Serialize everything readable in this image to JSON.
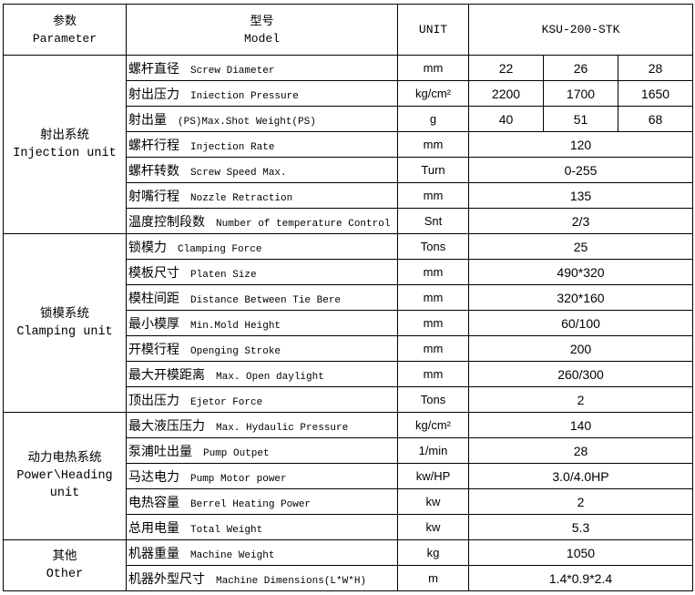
{
  "header": {
    "parameter_zh": "参数",
    "parameter_en": "Parameter",
    "model_zh": "型号",
    "model_en": "Model",
    "unit": "UNIT",
    "model_value": "KSU-200-STK"
  },
  "groups": [
    {
      "zh": "射出系统",
      "en": "Injection unit",
      "rows": [
        {
          "zh": "螺杆直径",
          "en": "Screw Diameter",
          "unit": "mm",
          "values": [
            "22",
            "26",
            "28"
          ]
        },
        {
          "zh": "射出压力",
          "en": "Iniection Pressure",
          "unit": "kg/cm²",
          "values": [
            "2200",
            "1700",
            "1650"
          ]
        },
        {
          "zh": "射出量",
          "en": "(PS)Max.Shot Weight(PS)",
          "unit": "g",
          "values": [
            "40",
            "51",
            "68"
          ]
        },
        {
          "zh": "螺杆行程",
          "en": "Injection  Rate",
          "unit": "mm",
          "values": [
            "120"
          ]
        },
        {
          "zh": "螺杆转数",
          "en": "Screw Speed Max.",
          "unit": "Turn",
          "values": [
            "0-255"
          ]
        },
        {
          "zh": "射嘴行程",
          "en": "Nozzle  Retraction",
          "unit": "mm",
          "values": [
            "135"
          ]
        },
        {
          "zh": "温度控制段数",
          "en": "Number of temperature Control",
          "unit": "Snt",
          "values": [
            "2/3"
          ]
        }
      ]
    },
    {
      "zh": "锁模系统",
      "en": "Clamping unit",
      "rows": [
        {
          "zh": "锁模力",
          "en": "Clamping Force",
          "unit": "Tons",
          "values": [
            "25"
          ]
        },
        {
          "zh": "模板尺寸",
          "en": "Platen Size",
          "unit": "mm",
          "values": [
            "490*320"
          ]
        },
        {
          "zh": "模柱间距",
          "en": "Distance Between Tie Bere",
          "unit": "mm",
          "values": [
            "320*160"
          ]
        },
        {
          "zh": "最小模厚",
          "en": "Min.Mold Height",
          "unit": "mm",
          "values": [
            "60/100"
          ]
        },
        {
          "zh": "开模行程",
          "en": "Openging Stroke",
          "unit": "mm",
          "values": [
            "200"
          ]
        },
        {
          "zh": "最大开模距离",
          "en": "Max. Open daylight",
          "unit": "mm",
          "values": [
            "260/300"
          ]
        },
        {
          "zh": "顶出压力",
          "en": "Ejetor Force",
          "unit": "Tons",
          "values": [
            "2"
          ]
        }
      ]
    },
    {
      "zh": "动力电热系统",
      "en": "Power\\Heading unit",
      "rows": [
        {
          "zh": "最大液压压力",
          "en": "Max. Hydaulic Pressure",
          "unit": "kg/cm²",
          "values": [
            "140"
          ]
        },
        {
          "zh": "泵浦吐出量",
          "en": "Pump Outpet",
          "unit": "1/min",
          "values": [
            "28"
          ]
        },
        {
          "zh": "马达电力",
          "en": "Pump Motor power",
          "unit": "kw/HP",
          "values": [
            "3.0/4.0HP"
          ]
        },
        {
          "zh": "电热容量",
          "en": "Berrel Heating Power",
          "unit": "kw",
          "values": [
            "2"
          ]
        },
        {
          "zh": "总用电量",
          "en": "Total Weight",
          "unit": "kw",
          "values": [
            "5.3"
          ]
        }
      ]
    },
    {
      "zh": "其他",
      "en": "Other",
      "rows": [
        {
          "zh": "机器重量",
          "en": "Machine Weight",
          "unit": "kg",
          "values": [
            "1050"
          ]
        },
        {
          "zh": "机器外型尺寸",
          "en": "Machine Dimensions(L*W*H)",
          "unit": "m",
          "values": [
            "1.4*0.9*2.4"
          ]
        }
      ]
    }
  ]
}
